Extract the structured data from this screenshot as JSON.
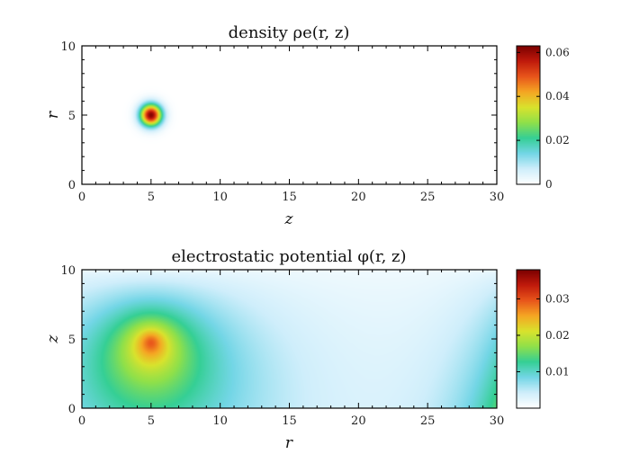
{
  "chart_data": [
    {
      "type": "heatmap",
      "title": "density ρe(r, z)",
      "xlabel": "z",
      "ylabel": "r",
      "xlim": [
        0,
        30
      ],
      "ylim": [
        0,
        10
      ],
      "xticks": [
        "0",
        "5",
        "10",
        "15",
        "20",
        "25",
        "30"
      ],
      "yticks": [
        "0",
        "5",
        "10"
      ],
      "field": {
        "kind": "gaussian-blob",
        "center": [
          5,
          5
        ],
        "peak": 0.062,
        "sigma": 0.55
      },
      "colorbar": {
        "range": [
          0,
          0.063
        ],
        "ticks": [
          "0",
          "0.02",
          "0.04",
          "0.06"
        ]
      },
      "colormap": [
        "#ffffff",
        "#cfeefb",
        "#73d6e6",
        "#35cf95",
        "#8fe04a",
        "#d9e22d",
        "#f5a623",
        "#e8551b",
        "#c01a0c",
        "#7a0000"
      ]
    },
    {
      "type": "heatmap",
      "title": "electrostatic potential φ(r, z)",
      "xlabel": "r",
      "ylabel": "z",
      "xlim": [
        0,
        30
      ],
      "ylim": [
        0,
        10
      ],
      "xticks": [
        "0",
        "5",
        "10",
        "15",
        "20",
        "25",
        "30"
      ],
      "yticks": [
        "0",
        "5",
        "10"
      ],
      "field": {
        "kind": "point-charge-potential",
        "center": [
          5,
          4.8
        ],
        "peak": 0.038,
        "boundary_z": 10
      },
      "colorbar": {
        "range": [
          0,
          0.038
        ],
        "ticks": [
          "0.01",
          "0.02",
          "0.03"
        ]
      },
      "colormap": [
        "#ffffff",
        "#cfeefb",
        "#73d6e6",
        "#35cf95",
        "#8fe04a",
        "#d9e22d",
        "#f5a623",
        "#e8551b",
        "#c01a0c",
        "#7a0000"
      ]
    }
  ]
}
